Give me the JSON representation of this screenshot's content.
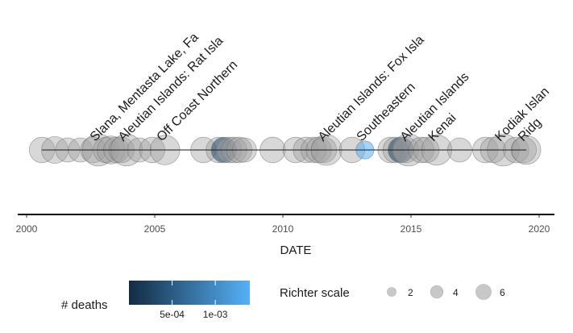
{
  "chart_data": {
    "type": "scatter",
    "title": "",
    "xlabel": "DATE",
    "ylabel": "",
    "xlim": [
      2000,
      2020.3
    ],
    "xticks": [
      "2000",
      "2005",
      "2010",
      "2015",
      "2020"
    ],
    "grid": false,
    "colors": {
      "point_fill": "#9e9e9e",
      "point_stroke": "#6f6f6f",
      "line": "#1a1a1a",
      "deaths_low": "#132b43",
      "deaths_high": "#56b1f7"
    },
    "points": [
      {
        "x": 2000.6,
        "mag": 5.0,
        "deaths": null
      },
      {
        "x": 2001.1,
        "mag": 5.5,
        "deaths": null
      },
      {
        "x": 2001.6,
        "mag": 4.5,
        "deaths": null
      },
      {
        "x": 2002.1,
        "mag": 4.5,
        "deaths": null
      },
      {
        "x": 2002.6,
        "mag": 5.0,
        "deaths": null
      },
      {
        "x": 2002.8,
        "mag": 7.9,
        "deaths": null,
        "label": "Slana, Mentasta Lake, Fa"
      },
      {
        "x": 2003.1,
        "mag": 5.0,
        "deaths": null
      },
      {
        "x": 2003.3,
        "mag": 6.0,
        "deaths": null
      },
      {
        "x": 2003.5,
        "mag": 5.0,
        "deaths": null
      },
      {
        "x": 2003.7,
        "mag": 5.0,
        "deaths": null
      },
      {
        "x": 2003.9,
        "mag": 7.8,
        "deaths": null,
        "label": "Aleutian Islands: Rat Isla"
      },
      {
        "x": 2004.4,
        "mag": 4.5,
        "deaths": null
      },
      {
        "x": 2004.9,
        "mag": 5.0,
        "deaths": null
      },
      {
        "x": 2005.4,
        "mag": 6.8,
        "deaths": null,
        "label": "Off Coast Northern"
      },
      {
        "x": 2006.9,
        "mag": 5.0,
        "deaths": null
      },
      {
        "x": 2007.5,
        "mag": 5.0,
        "deaths": null
      },
      {
        "x": 2007.7,
        "mag": 5.0,
        "deaths": 0.0003
      },
      {
        "x": 2007.9,
        "mag": 5.0,
        "deaths": null
      },
      {
        "x": 2008.1,
        "mag": 5.0,
        "deaths": null
      },
      {
        "x": 2008.3,
        "mag": 5.0,
        "deaths": null
      },
      {
        "x": 2008.5,
        "mag": 4.5,
        "deaths": null
      },
      {
        "x": 2009.6,
        "mag": 5.0,
        "deaths": null
      },
      {
        "x": 2010.5,
        "mag": 5.0,
        "deaths": null
      },
      {
        "x": 2010.9,
        "mag": 5.0,
        "deaths": null
      },
      {
        "x": 2011.2,
        "mag": 5.0,
        "deaths": null
      },
      {
        "x": 2011.4,
        "mag": 5.0,
        "deaths": null
      },
      {
        "x": 2011.6,
        "mag": 5.0,
        "deaths": null
      },
      {
        "x": 2011.7,
        "mag": 7.3,
        "deaths": null,
        "label": "Aleutian Islands: Fox Isla"
      },
      {
        "x": 2012.7,
        "mag": 5.0,
        "deaths": null
      },
      {
        "x": 2013.2,
        "mag": 2.5,
        "deaths": 0.0014,
        "label": "Southeastern"
      },
      {
        "x": 2014.2,
        "mag": 5.0,
        "deaths": null
      },
      {
        "x": 2014.4,
        "mag": 5.0,
        "deaths": null
      },
      {
        "x": 2014.6,
        "mag": 5.0,
        "deaths": 0.0002
      },
      {
        "x": 2014.8,
        "mag": 5.0,
        "deaths": null
      },
      {
        "x": 2014.9,
        "mag": 7.9,
        "deaths": null,
        "label": "Aleutian Islands"
      },
      {
        "x": 2015.4,
        "mag": 5.0,
        "deaths": null
      },
      {
        "x": 2015.6,
        "mag": 5.0,
        "deaths": null
      },
      {
        "x": 2016.0,
        "mag": 7.1,
        "deaths": null,
        "label": "Kenai"
      },
      {
        "x": 2016.9,
        "mag": 4.5,
        "deaths": null
      },
      {
        "x": 2017.9,
        "mag": 5.0,
        "deaths": null
      },
      {
        "x": 2018.2,
        "mag": 5.0,
        "deaths": null
      },
      {
        "x": 2018.6,
        "mag": 7.9,
        "deaths": null,
        "label": "Kodiak Islan"
      },
      {
        "x": 2019.1,
        "mag": 5.0,
        "deaths": null
      },
      {
        "x": 2019.4,
        "mag": 5.0,
        "deaths": null
      },
      {
        "x": 2019.5,
        "mag": 6.4,
        "deaths": null,
        "label": "Ridg"
      }
    ],
    "legend": {
      "placement": "bottom",
      "color_title": "# deaths",
      "color_range": [
        0,
        0.0014
      ],
      "color_ticks": [
        {
          "value": 0.0005,
          "label": "5e-04"
        },
        {
          "value": 0.001,
          "label": "1e-03"
        }
      ],
      "size_title": "Richter scale",
      "size_items": [
        {
          "value": 2,
          "label": "2"
        },
        {
          "value": 4,
          "label": "4"
        },
        {
          "value": 6,
          "label": "6"
        }
      ]
    }
  }
}
